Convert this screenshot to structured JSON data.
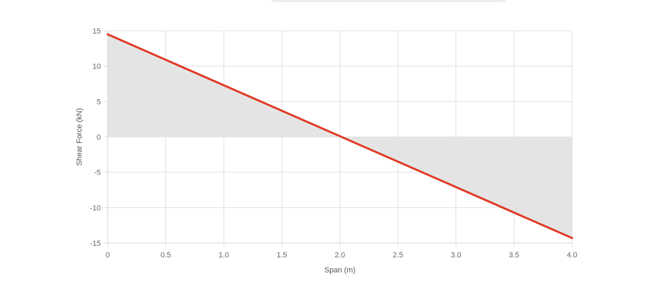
{
  "chart_data": {
    "type": "line",
    "title": "",
    "xlabel": "Span (m)",
    "ylabel": "Shear Force (kN)",
    "xlim": [
      0,
      4.0
    ],
    "ylim": [
      -15,
      15
    ],
    "x_ticks": [
      {
        "value": 0,
        "label": "0"
      },
      {
        "value": 0.5,
        "label": "0.5"
      },
      {
        "value": 1.0,
        "label": "1.0"
      },
      {
        "value": 1.5,
        "label": "1.5"
      },
      {
        "value": 2.0,
        "label": "2.0"
      },
      {
        "value": 2.5,
        "label": "2.5"
      },
      {
        "value": 3.0,
        "label": "3.0"
      },
      {
        "value": 3.5,
        "label": "3.5"
      },
      {
        "value": 4.0,
        "label": "4.0"
      }
    ],
    "y_ticks": [
      {
        "value": 15,
        "label": "15"
      },
      {
        "value": 10,
        "label": "10"
      },
      {
        "value": 5,
        "label": "5"
      },
      {
        "value": 0,
        "label": "0"
      },
      {
        "value": -5,
        "label": "-5"
      },
      {
        "value": -10,
        "label": "-10"
      },
      {
        "value": -15,
        "label": "-15"
      }
    ],
    "grid": true,
    "legend": "none",
    "series": [
      {
        "x": [
          0,
          4.0
        ],
        "y": [
          14.5,
          -14.3
        ],
        "color": "#e03a25",
        "fill_to_zero": true,
        "fill_color": "#e4e4e4"
      }
    ]
  }
}
